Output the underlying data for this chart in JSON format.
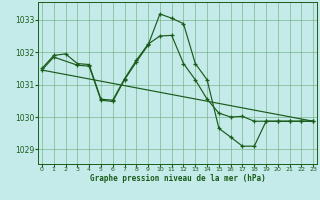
{
  "xlabel": "Graphe pression niveau de la mer (hPa)",
  "background_color": "#c5eaea",
  "grid_color": "#6aaa7a",
  "line_color": "#1a5c1a",
  "xlim": [
    -0.3,
    23.3
  ],
  "ylim": [
    1028.55,
    1033.55
  ],
  "yticks": [
    1029,
    1030,
    1031,
    1032,
    1033
  ],
  "xticks": [
    0,
    1,
    2,
    3,
    4,
    5,
    6,
    7,
    8,
    9,
    10,
    11,
    12,
    13,
    14,
    15,
    16,
    17,
    18,
    19,
    20,
    21,
    22,
    23
  ],
  "series1_x": [
    0,
    1,
    2,
    3,
    4,
    5,
    6,
    7,
    8,
    9,
    10,
    11,
    12,
    13,
    14,
    15,
    16,
    17,
    18,
    19,
    20,
    21,
    22,
    23
  ],
  "series1_y": [
    1031.5,
    1031.9,
    1031.95,
    1031.65,
    1031.62,
    1030.55,
    1030.52,
    1031.18,
    1031.75,
    1032.25,
    1032.5,
    1032.52,
    1031.65,
    1031.15,
    1030.55,
    1030.12,
    1030.0,
    1030.02,
    1029.87,
    1029.87,
    1029.87,
    1029.87,
    1029.87,
    1029.87
  ],
  "series2_x": [
    0,
    1,
    3,
    4,
    5,
    6,
    7,
    8,
    9,
    10,
    11,
    12,
    13,
    14,
    15,
    16,
    17,
    18,
    19,
    20,
    21,
    22,
    23
  ],
  "series2_y": [
    1031.45,
    1031.85,
    1031.6,
    1031.57,
    1030.52,
    1030.48,
    1031.15,
    1031.7,
    1032.22,
    1033.18,
    1033.05,
    1032.88,
    1031.65,
    1031.15,
    1029.65,
    1029.38,
    1029.1,
    1029.1,
    1029.87,
    1029.87,
    1029.87,
    1029.87,
    1029.87
  ],
  "series3_x": [
    0,
    23
  ],
  "series3_y": [
    1031.45,
    1029.87
  ]
}
